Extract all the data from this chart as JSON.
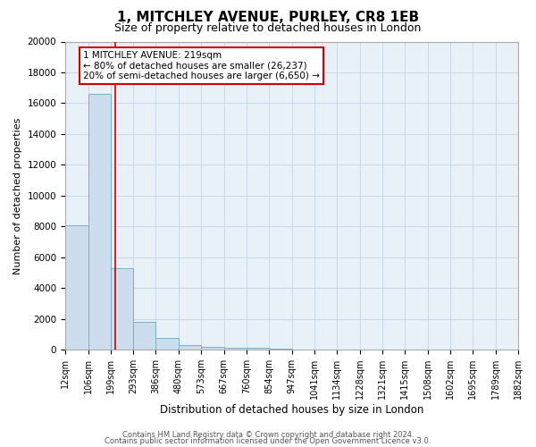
{
  "title": "1, MITCHLEY AVENUE, PURLEY, CR8 1EB",
  "subtitle": "Size of property relative to detached houses in London",
  "xlabel": "Distribution of detached houses by size in London",
  "ylabel": "Number of detached properties",
  "bar_color": "#ccdded",
  "bar_edge_color": "#7aaecb",
  "bg_color": "#e8f0f8",
  "grid_color": "#c5d5e5",
  "bin_labels": [
    "12sqm",
    "106sqm",
    "199sqm",
    "293sqm",
    "386sqm",
    "480sqm",
    "573sqm",
    "667sqm",
    "760sqm",
    "854sqm",
    "947sqm",
    "1041sqm",
    "1134sqm",
    "1228sqm",
    "1321sqm",
    "1415sqm",
    "1508sqm",
    "1602sqm",
    "1695sqm",
    "1789sqm",
    "1882sqm"
  ],
  "bar_heights": [
    8100,
    16600,
    5300,
    1800,
    750,
    300,
    200,
    100,
    100,
    50,
    0,
    0,
    0,
    0,
    0,
    0,
    0,
    0,
    0,
    0
  ],
  "red_line_x": 219,
  "bin_edges": [
    12,
    106,
    199,
    293,
    386,
    480,
    573,
    667,
    760,
    854,
    947,
    1041,
    1134,
    1228,
    1321,
    1415,
    1508,
    1602,
    1695,
    1789,
    1882
  ],
  "annotation_title": "1 MITCHLEY AVENUE: 219sqm",
  "annotation_line1": "← 80% of detached houses are smaller (26,237)",
  "annotation_line2": "20% of semi-detached houses are larger (6,650) →",
  "annotation_box_color": "#ffffff",
  "annotation_box_edge": "#cc0000",
  "red_line_color": "#cc0000",
  "ylim": [
    0,
    20000
  ],
  "yticks": [
    0,
    2000,
    4000,
    6000,
    8000,
    10000,
    12000,
    14000,
    16000,
    18000,
    20000
  ],
  "footer1": "Contains HM Land Registry data © Crown copyright and database right 2024.",
  "footer2": "Contains public sector information licensed under the Open Government Licence v3.0."
}
